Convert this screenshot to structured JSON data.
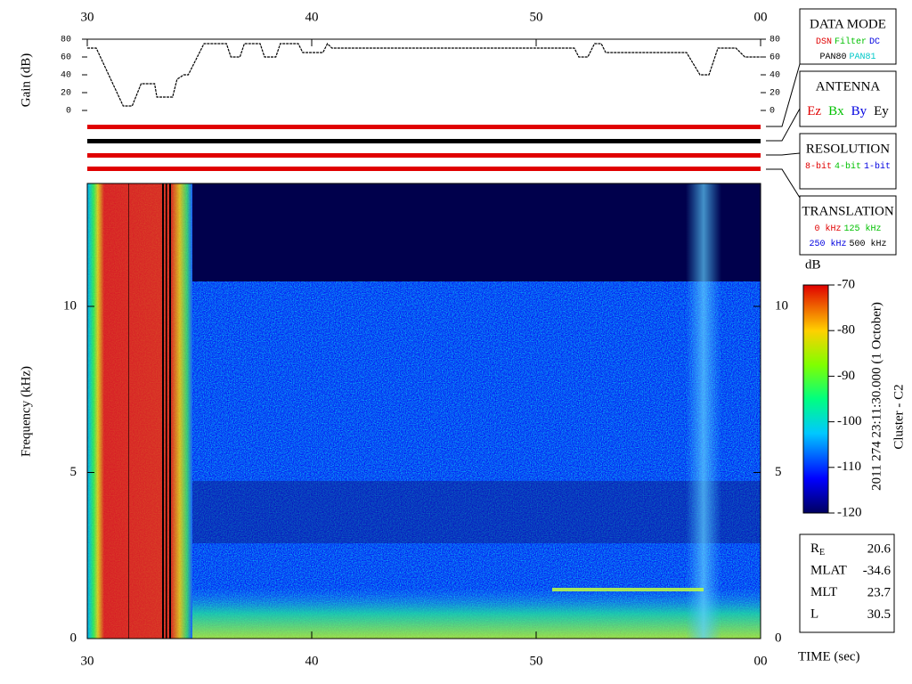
{
  "chart_data": [
    {
      "type": "line",
      "y_label": "Gain (dB)",
      "x": [
        30.0,
        30.4,
        31.6,
        32.0,
        32.4,
        33.0,
        33.1,
        33.8,
        34.0,
        34.3,
        34.5,
        35.2,
        36.2,
        36.4,
        36.8,
        37.0,
        37.7,
        37.9,
        38.4,
        38.6,
        39.4,
        39.6,
        40.5,
        40.7,
        40.9,
        51.7,
        51.9,
        52.3,
        52.6,
        52.9,
        53.1,
        56.7,
        57.3,
        57.7,
        58.1,
        58.9,
        59.3,
        60.0
      ],
      "values": [
        70,
        70,
        5,
        5,
        30,
        30,
        15,
        15,
        35,
        40,
        40,
        75,
        75,
        60,
        60,
        75,
        75,
        60,
        60,
        75,
        75,
        65,
        65,
        75,
        70,
        70,
        60,
        60,
        75,
        75,
        65,
        65,
        40,
        40,
        70,
        70,
        60,
        60
      ],
      "color": "#000000",
      "xlim": [
        30,
        60
      ],
      "xticks": [
        30,
        40,
        50,
        {
          "value": 60,
          "label": "00"
        }
      ],
      "ylim": [
        0,
        80
      ],
      "yticks": [
        0,
        20,
        40,
        60,
        80
      ]
    },
    {
      "type": "spectrogram",
      "y_label": "Frequency (kHz)",
      "x_label": "TIME (sec)",
      "xlim": [
        30,
        60
      ],
      "xticks": [
        30,
        40,
        50,
        {
          "value": 60,
          "label": "00"
        }
      ],
      "ylim": [
        0,
        13.7
      ],
      "yticks": [
        0,
        5,
        10
      ]
    },
    {
      "type": "colorbar",
      "label": "dB",
      "ylim": [
        -120,
        -70
      ],
      "yticks": [
        -70,
        -80,
        -90,
        -100,
        -110,
        -120
      ]
    }
  ],
  "date_label": "2011 274 23:11:30.000 (1 October)",
  "spacecraft": "Cluster - C2",
  "mode_boxes": [
    {
      "title": "DATA MODE",
      "rows": [
        [
          {
            "text": "DSN",
            "color": "#e00000"
          },
          {
            "text": "Filter",
            "color": "#00c000"
          },
          {
            "text": "DC",
            "color": "#0000e0"
          }
        ],
        [
          {
            "text": "PAN80",
            "color": "#000000"
          },
          {
            "text": "PAN81",
            "color": "#00c8c8"
          }
        ]
      ]
    },
    {
      "title": "ANTENNA",
      "rows": [
        [
          {
            "text": "Ez",
            "color": "#e00000"
          },
          {
            "text": "Bx",
            "color": "#00c000"
          },
          {
            "text": "By",
            "color": "#0000e0"
          },
          {
            "text": "Ey",
            "color": "#000000"
          }
        ]
      ]
    },
    {
      "title": "RESOLUTION",
      "rows": [
        [
          {
            "text": "8-bit",
            "color": "#e00000"
          },
          {
            "text": "4-bit",
            "color": "#00c000"
          },
          {
            "text": "1-bit",
            "color": "#0000e0"
          }
        ]
      ]
    },
    {
      "title": "TRANSLATION",
      "rows": [
        [
          {
            "text": "0 kHz",
            "color": "#e00000"
          },
          {
            "text": "125 kHz",
            "color": "#00c000"
          }
        ],
        [
          {
            "text": "250 kHz",
            "color": "#0000e0"
          },
          {
            "text": "500 kHz",
            "color": "#000000"
          }
        ]
      ]
    }
  ],
  "ephemeris": [
    {
      "label": "R",
      "sub": "E",
      "value": 20.6
    },
    {
      "label": "MLAT",
      "value": -34.6
    },
    {
      "label": "MLT",
      "value": 23.7
    },
    {
      "label": "L",
      "value": 30.5
    }
  ]
}
